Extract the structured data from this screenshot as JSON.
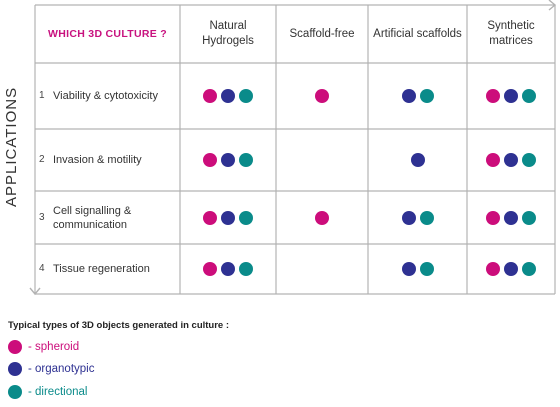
{
  "colors": {
    "spheroid": "#cc0d7b",
    "organotypic": "#2e3192",
    "directional": "#0a8b8a",
    "grid": "#b3b3b3",
    "corner_text": "#c8127f"
  },
  "header": {
    "corner_label": "WHICH 3D CULTURE ?",
    "columns": [
      "Natural\nHydrogels",
      "Scaffold-free",
      "Artificial scaffolds",
      "Synthetic\nmatrices"
    ]
  },
  "axis_label": "APPLICATIONS",
  "rows": [
    {
      "num": "1",
      "label": "Viability & cytotoxicity",
      "cells": [
        [
          "spheroid",
          "organotypic",
          "directional"
        ],
        [
          "spheroid"
        ],
        [
          "organotypic",
          "directional"
        ],
        [
          "spheroid",
          "organotypic",
          "directional"
        ]
      ]
    },
    {
      "num": "2",
      "label": "Invasion & motility",
      "cells": [
        [
          "spheroid",
          "organotypic",
          "directional"
        ],
        [],
        [
          "organotypic"
        ],
        [
          "spheroid",
          "organotypic",
          "directional"
        ]
      ]
    },
    {
      "num": "3",
      "label": "Cell signalling &\ncommunication",
      "cells": [
        [
          "spheroid",
          "organotypic",
          "directional"
        ],
        [
          "spheroid"
        ],
        [
          "organotypic",
          "directional"
        ],
        [
          "spheroid",
          "organotypic",
          "directional"
        ]
      ]
    },
    {
      "num": "4",
      "label": "Tissue regeneration",
      "cells": [
        [
          "spheroid",
          "organotypic",
          "directional"
        ],
        [],
        [
          "organotypic",
          "directional"
        ],
        [
          "spheroid",
          "organotypic",
          "directional"
        ]
      ]
    }
  ],
  "legend": {
    "title": "Typical types of 3D objects generated in culture :",
    "items": [
      {
        "key": "spheroid",
        "label": "- spheroid"
      },
      {
        "key": "organotypic",
        "label": "- organotypic"
      },
      {
        "key": "directional",
        "label": "- directional"
      }
    ]
  }
}
